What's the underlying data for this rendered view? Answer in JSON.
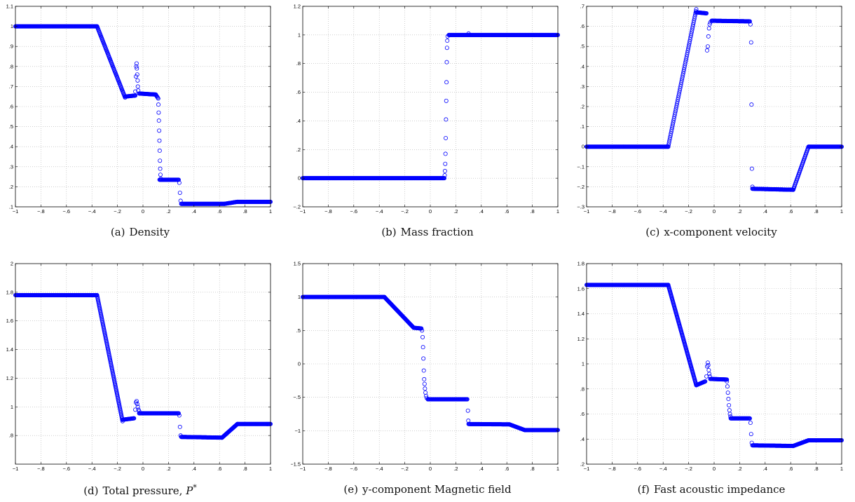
{
  "figure": {
    "marker_color": "#0000ff",
    "panels": [
      {
        "id": "density",
        "caption_label": "(a)",
        "caption_text": "Density",
        "chart_data": {
          "type": "scatter",
          "xlim": [
            -1,
            1
          ],
          "ylim": [
            0.1,
            1.1
          ],
          "xticks": [
            -1,
            -0.8,
            -0.6,
            -0.4,
            -0.2,
            0,
            0.2,
            0.4,
            0.6,
            0.8,
            1
          ],
          "yticks": [
            0.1,
            0.2,
            0.3,
            0.4,
            0.5,
            0.6,
            0.7,
            0.8,
            0.9,
            1,
            1.1
          ],
          "grid": true,
          "segments": [
            {
              "x0": -1,
              "x1": -0.36,
              "y0": 1,
              "y1": 1,
              "step": 0.004
            },
            {
              "x0": -0.36,
              "x1": -0.14,
              "y0": 1,
              "y1": 0.645,
              "step": 0.003
            },
            {
              "x0": -0.14,
              "x1": -0.06,
              "y0": 0.65,
              "y1": 0.655,
              "step": 0.004
            },
            {
              "x0": -0.03,
              "x1": 0.1,
              "y0": 0.665,
              "y1": 0.66,
              "step": 0.004
            },
            {
              "x0": 0.1,
              "x1": 0.12,
              "y0": 0.66,
              "y1": 0.64,
              "step": 0.004
            },
            {
              "x0": 0.13,
              "x1": 0.28,
              "y0": 0.235,
              "y1": 0.235,
              "step": 0.004
            },
            {
              "x0": 0.3,
              "x1": 0.64,
              "y0": 0.115,
              "y1": 0.115,
              "step": 0.004
            },
            {
              "x0": 0.64,
              "x1": 0.74,
              "y0": 0.115,
              "y1": 0.125,
              "step": 0.004
            },
            {
              "x0": 0.74,
              "x1": 1,
              "y0": 0.125,
              "y1": 0.125,
              "step": 0.004
            }
          ],
          "points": [
            [
              -0.06,
              0.675
            ],
            [
              -0.055,
              0.75
            ],
            [
              -0.052,
              0.8
            ],
            [
              -0.05,
              0.815
            ],
            [
              -0.048,
              0.79
            ],
            [
              -0.045,
              0.76
            ],
            [
              -0.042,
              0.73
            ],
            [
              -0.04,
              0.7
            ],
            [
              -0.037,
              0.68
            ],
            [
              0.121,
              0.61
            ],
            [
              0.123,
              0.57
            ],
            [
              0.125,
              0.53
            ],
            [
              0.127,
              0.48
            ],
            [
              0.129,
              0.43
            ],
            [
              0.131,
              0.38
            ],
            [
              0.133,
              0.33
            ],
            [
              0.135,
              0.29
            ],
            [
              0.137,
              0.26
            ],
            [
              0.14,
              0.24
            ],
            [
              0.285,
              0.22
            ],
            [
              0.29,
              0.17
            ],
            [
              0.295,
              0.13
            ]
          ]
        }
      },
      {
        "id": "mass-fraction",
        "caption_label": "(b)",
        "caption_text": "Mass fraction",
        "chart_data": {
          "type": "scatter",
          "xlim": [
            -1,
            1
          ],
          "ylim": [
            -0.2,
            1.2
          ],
          "xticks": [
            -1,
            -0.8,
            -0.6,
            -0.4,
            -0.2,
            0,
            0.2,
            0.4,
            0.6,
            0.8,
            1
          ],
          "yticks": [
            -0.2,
            0,
            0.2,
            0.4,
            0.6,
            0.8,
            1,
            1.2
          ],
          "grid": true,
          "segments": [
            {
              "x0": -1,
              "x1": 0.11,
              "y0": 0,
              "y1": 0,
              "step": 0.004
            },
            {
              "x0": 0.145,
              "x1": 1,
              "y0": 1,
              "y1": 1,
              "step": 0.004
            }
          ],
          "points": [
            [
              0.113,
              0.02
            ],
            [
              0.115,
              0.05
            ],
            [
              0.117,
              0.1
            ],
            [
              0.119,
              0.17
            ],
            [
              0.121,
              0.28
            ],
            [
              0.123,
              0.41
            ],
            [
              0.125,
              0.54
            ],
            [
              0.127,
              0.67
            ],
            [
              0.129,
              0.81
            ],
            [
              0.131,
              0.91
            ],
            [
              0.133,
              0.96
            ],
            [
              0.136,
              0.99
            ],
            [
              0.3,
              1.01
            ]
          ]
        }
      },
      {
        "id": "x-velocity",
        "caption_label": "(c)",
        "caption_text": "x-component velocity",
        "chart_data": {
          "type": "scatter",
          "xlim": [
            -1,
            1
          ],
          "ylim": [
            -0.3,
            0.7
          ],
          "xticks": [
            -1,
            -0.8,
            -0.6,
            -0.4,
            -0.2,
            0,
            0.2,
            0.4,
            0.6,
            0.8,
            1
          ],
          "yticks": [
            -0.3,
            -0.2,
            -0.1,
            0,
            0.1,
            0.2,
            0.3,
            0.4,
            0.5,
            0.6,
            0.7
          ],
          "grid": true,
          "segments": [
            {
              "x0": -1,
              "x1": -0.36,
              "y0": 0,
              "y1": 0,
              "step": 0.004
            },
            {
              "x0": -0.36,
              "x1": -0.14,
              "y0": 0,
              "y1": 0.685,
              "step": 0.003
            },
            {
              "x0": -0.14,
              "x1": -0.06,
              "y0": 0.67,
              "y1": 0.665,
              "step": 0.004
            },
            {
              "x0": -0.02,
              "x1": 0.28,
              "y0": 0.628,
              "y1": 0.625,
              "step": 0.004
            },
            {
              "x0": 0.3,
              "x1": 0.62,
              "y0": -0.21,
              "y1": -0.215,
              "step": 0.004
            },
            {
              "x0": 0.62,
              "x1": 0.74,
              "y0": -0.215,
              "y1": 0,
              "step": 0.003
            },
            {
              "x0": 0.74,
              "x1": 1,
              "y0": 0,
              "y1": 0,
              "step": 0.004
            }
          ],
          "points": [
            [
              -0.055,
              0.48
            ],
            [
              -0.05,
              0.5
            ],
            [
              -0.045,
              0.55
            ],
            [
              -0.04,
              0.59
            ],
            [
              -0.035,
              0.61
            ],
            [
              -0.03,
              0.62
            ],
            [
              0.285,
              0.61
            ],
            [
              0.29,
              0.52
            ],
            [
              0.293,
              0.21
            ],
            [
              0.296,
              -0.11
            ],
            [
              0.3,
              -0.2
            ]
          ]
        }
      },
      {
        "id": "total-pressure",
        "caption_label": "(d)",
        "caption_text": "Total pressure, ",
        "caption_symbol": "P",
        "caption_sup": "*",
        "chart_data": {
          "type": "scatter",
          "xlim": [
            -1,
            1
          ],
          "ylim": [
            0.6,
            2
          ],
          "xticks": [
            -1,
            -0.8,
            -0.6,
            -0.4,
            -0.2,
            0,
            0.2,
            0.4,
            0.6,
            0.8,
            1
          ],
          "yticks": [
            0.8,
            1,
            1.2,
            1.4,
            1.6,
            1.8,
            2
          ],
          "grid": true,
          "segments": [
            {
              "x0": -1,
              "x1": -0.36,
              "y0": 1.78,
              "y1": 1.78,
              "step": 0.004
            },
            {
              "x0": -0.36,
              "x1": -0.16,
              "y0": 1.78,
              "y1": 0.9,
              "step": 0.002
            },
            {
              "x0": -0.16,
              "x1": -0.07,
              "y0": 0.91,
              "y1": 0.92,
              "step": 0.004
            },
            {
              "x0": -0.03,
              "x1": 0.28,
              "y0": 0.955,
              "y1": 0.955,
              "step": 0.004
            },
            {
              "x0": 0.3,
              "x1": 0.62,
              "y0": 0.79,
              "y1": 0.785,
              "step": 0.004
            },
            {
              "x0": 0.62,
              "x1": 0.74,
              "y0": 0.785,
              "y1": 0.88,
              "step": 0.003
            },
            {
              "x0": 0.74,
              "x1": 1,
              "y0": 0.88,
              "y1": 0.88,
              "step": 0.004
            }
          ],
          "points": [
            [
              -0.06,
              0.98
            ],
            [
              -0.055,
              1.03
            ],
            [
              -0.05,
              1.04
            ],
            [
              -0.045,
              1.02
            ],
            [
              -0.04,
              1
            ],
            [
              -0.035,
              0.98
            ],
            [
              -0.03,
              0.97
            ],
            [
              0.285,
              0.94
            ],
            [
              0.29,
              0.86
            ],
            [
              0.295,
              0.8
            ]
          ]
        }
      },
      {
        "id": "y-magnetic-field",
        "caption_label": "(e)",
        "caption_text": "y-component Magnetic field",
        "chart_data": {
          "type": "scatter",
          "xlim": [
            -1,
            1
          ],
          "ylim": [
            -1.5,
            1.5
          ],
          "xticks": [
            -1,
            -0.8,
            -0.6,
            -0.4,
            -0.2,
            0,
            0.2,
            0.4,
            0.6,
            0.8,
            1
          ],
          "yticks": [
            -1.5,
            -1,
            -0.5,
            0,
            0.5,
            1,
            1.5
          ],
          "grid": true,
          "segments": [
            {
              "x0": -1,
              "x1": -0.36,
              "y0": 1,
              "y1": 1,
              "step": 0.004
            },
            {
              "x0": -0.36,
              "x1": -0.13,
              "y0": 1,
              "y1": 0.54,
              "step": 0.003
            },
            {
              "x0": -0.13,
              "x1": -0.07,
              "y0": 0.54,
              "y1": 0.53,
              "step": 0.004
            },
            {
              "x0": -0.02,
              "x1": 0.29,
              "y0": -0.53,
              "y1": -0.53,
              "step": 0.004
            },
            {
              "x0": 0.3,
              "x1": 0.62,
              "y0": -0.9,
              "y1": -0.905,
              "step": 0.004
            },
            {
              "x0": 0.62,
              "x1": 0.74,
              "y0": -0.905,
              "y1": -0.99,
              "step": 0.003
            },
            {
              "x0": 0.74,
              "x1": 1,
              "y0": -0.99,
              "y1": -0.99,
              "step": 0.004
            }
          ],
          "points": [
            [
              -0.065,
              0.5
            ],
            [
              -0.06,
              0.4
            ],
            [
              -0.057,
              0.25
            ],
            [
              -0.054,
              0.08
            ],
            [
              -0.051,
              -0.1
            ],
            [
              -0.048,
              -0.23
            ],
            [
              -0.045,
              -0.3
            ],
            [
              -0.042,
              -0.37
            ],
            [
              -0.038,
              -0.43
            ],
            [
              -0.033,
              -0.48
            ],
            [
              -0.028,
              -0.51
            ],
            [
              0.295,
              -0.7
            ],
            [
              0.298,
              -0.85
            ]
          ]
        }
      },
      {
        "id": "fast-acoustic-impedance",
        "caption_label": "(f)",
        "caption_text": "Fast acoustic impedance",
        "chart_data": {
          "type": "scatter",
          "xlim": [
            -1,
            1
          ],
          "ylim": [
            0.2,
            1.8
          ],
          "xticks": [
            -1,
            -0.8,
            -0.6,
            -0.4,
            -0.2,
            0,
            0.2,
            0.4,
            0.6,
            0.8,
            1
          ],
          "yticks": [
            0.2,
            0.4,
            0.6,
            0.8,
            1,
            1.2,
            1.4,
            1.6,
            1.8
          ],
          "grid": true,
          "segments": [
            {
              "x0": -1,
              "x1": -0.36,
              "y0": 1.63,
              "y1": 1.63,
              "step": 0.004
            },
            {
              "x0": -0.36,
              "x1": -0.14,
              "y0": 1.63,
              "y1": 0.83,
              "step": 0.002
            },
            {
              "x0": -0.14,
              "x1": -0.07,
              "y0": 0.83,
              "y1": 0.86,
              "step": 0.004
            },
            {
              "x0": -0.03,
              "x1": 0.1,
              "y0": 0.88,
              "y1": 0.875,
              "step": 0.004
            },
            {
              "x0": 0.13,
              "x1": 0.28,
              "y0": 0.565,
              "y1": 0.565,
              "step": 0.004
            },
            {
              "x0": 0.3,
              "x1": 0.62,
              "y0": 0.35,
              "y1": 0.345,
              "step": 0.004
            },
            {
              "x0": 0.62,
              "x1": 0.74,
              "y0": 0.345,
              "y1": 0.39,
              "step": 0.003
            },
            {
              "x0": 0.74,
              "x1": 1,
              "y0": 0.39,
              "y1": 0.39,
              "step": 0.004
            }
          ],
          "points": [
            [
              -0.06,
              0.9
            ],
            [
              -0.055,
              0.98
            ],
            [
              -0.05,
              1.01
            ],
            [
              -0.046,
              0.99
            ],
            [
              -0.042,
              0.95
            ],
            [
              -0.038,
              0.92
            ],
            [
              -0.034,
              0.9
            ],
            [
              0.1,
              0.86
            ],
            [
              0.104,
              0.82
            ],
            [
              0.108,
              0.77
            ],
            [
              0.112,
              0.72
            ],
            [
              0.116,
              0.67
            ],
            [
              0.12,
              0.63
            ],
            [
              0.124,
              0.6
            ],
            [
              0.128,
              0.58
            ],
            [
              0.285,
              0.53
            ],
            [
              0.29,
              0.44
            ],
            [
              0.295,
              0.37
            ]
          ]
        }
      }
    ]
  }
}
